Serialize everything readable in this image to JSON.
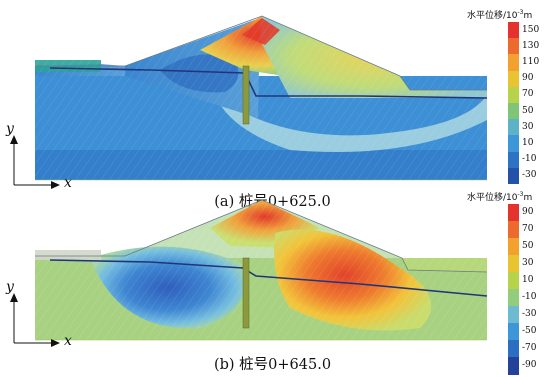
{
  "axes": {
    "x_label": "x",
    "y_label": "y"
  },
  "panels": [
    {
      "caption": "(a) 桩号0+625.0",
      "colorbar": {
        "title": "水平位移/10",
        "exponent": "-3",
        "unit": "m",
        "ticks": [
          "150",
          "130",
          "110",
          "90",
          "70",
          "50",
          "30",
          "10",
          "-10",
          "-30"
        ],
        "colors": [
          "#e4332c",
          "#ec6a2c",
          "#f2a02e",
          "#e8c530",
          "#b7d34a",
          "#7fc477",
          "#5db2c8",
          "#3d96d8",
          "#2c73c4",
          "#2452a6"
        ]
      },
      "field_colors": {
        "foundation": "#3d8fd6",
        "foundation_deep": "#2f78c8",
        "upstream_body": "#3a86d0",
        "upstream_pool": "#2f6fc0",
        "core": "#e88a3a",
        "downstream_body": "#cfe07a",
        "downstream_lens": "#a9d8e0",
        "crest_hot": "#e23b2b",
        "berm_cap": "#2aa39a"
      }
    },
    {
      "caption": "(b) 桩号0+645.0",
      "colorbar": {
        "title": "水平位移/10",
        "exponent": "-3",
        "unit": "m",
        "ticks": [
          "90",
          "70",
          "50",
          "30",
          "10",
          "-10",
          "-30",
          "-50",
          "-70",
          "-90"
        ],
        "colors": [
          "#e4332c",
          "#ec6a2c",
          "#f2a02e",
          "#e8c530",
          "#b7d34a",
          "#94cc7e",
          "#6cbbd0",
          "#3d96d8",
          "#2c6fc2",
          "#24429a"
        ]
      },
      "field_colors": {
        "foundation": "#b6d77a",
        "foundation_deep": "#9fcf86",
        "upstream_body": "#5aa8dc",
        "upstream_pool": "#2f5fbc",
        "core": "#f0a13c",
        "downstream_body": "#f2c33a",
        "downstream_lens": "#ec5a2c",
        "crest_hot": "#e13a2a",
        "berm_cap": "#cfd6c8"
      }
    }
  ]
}
